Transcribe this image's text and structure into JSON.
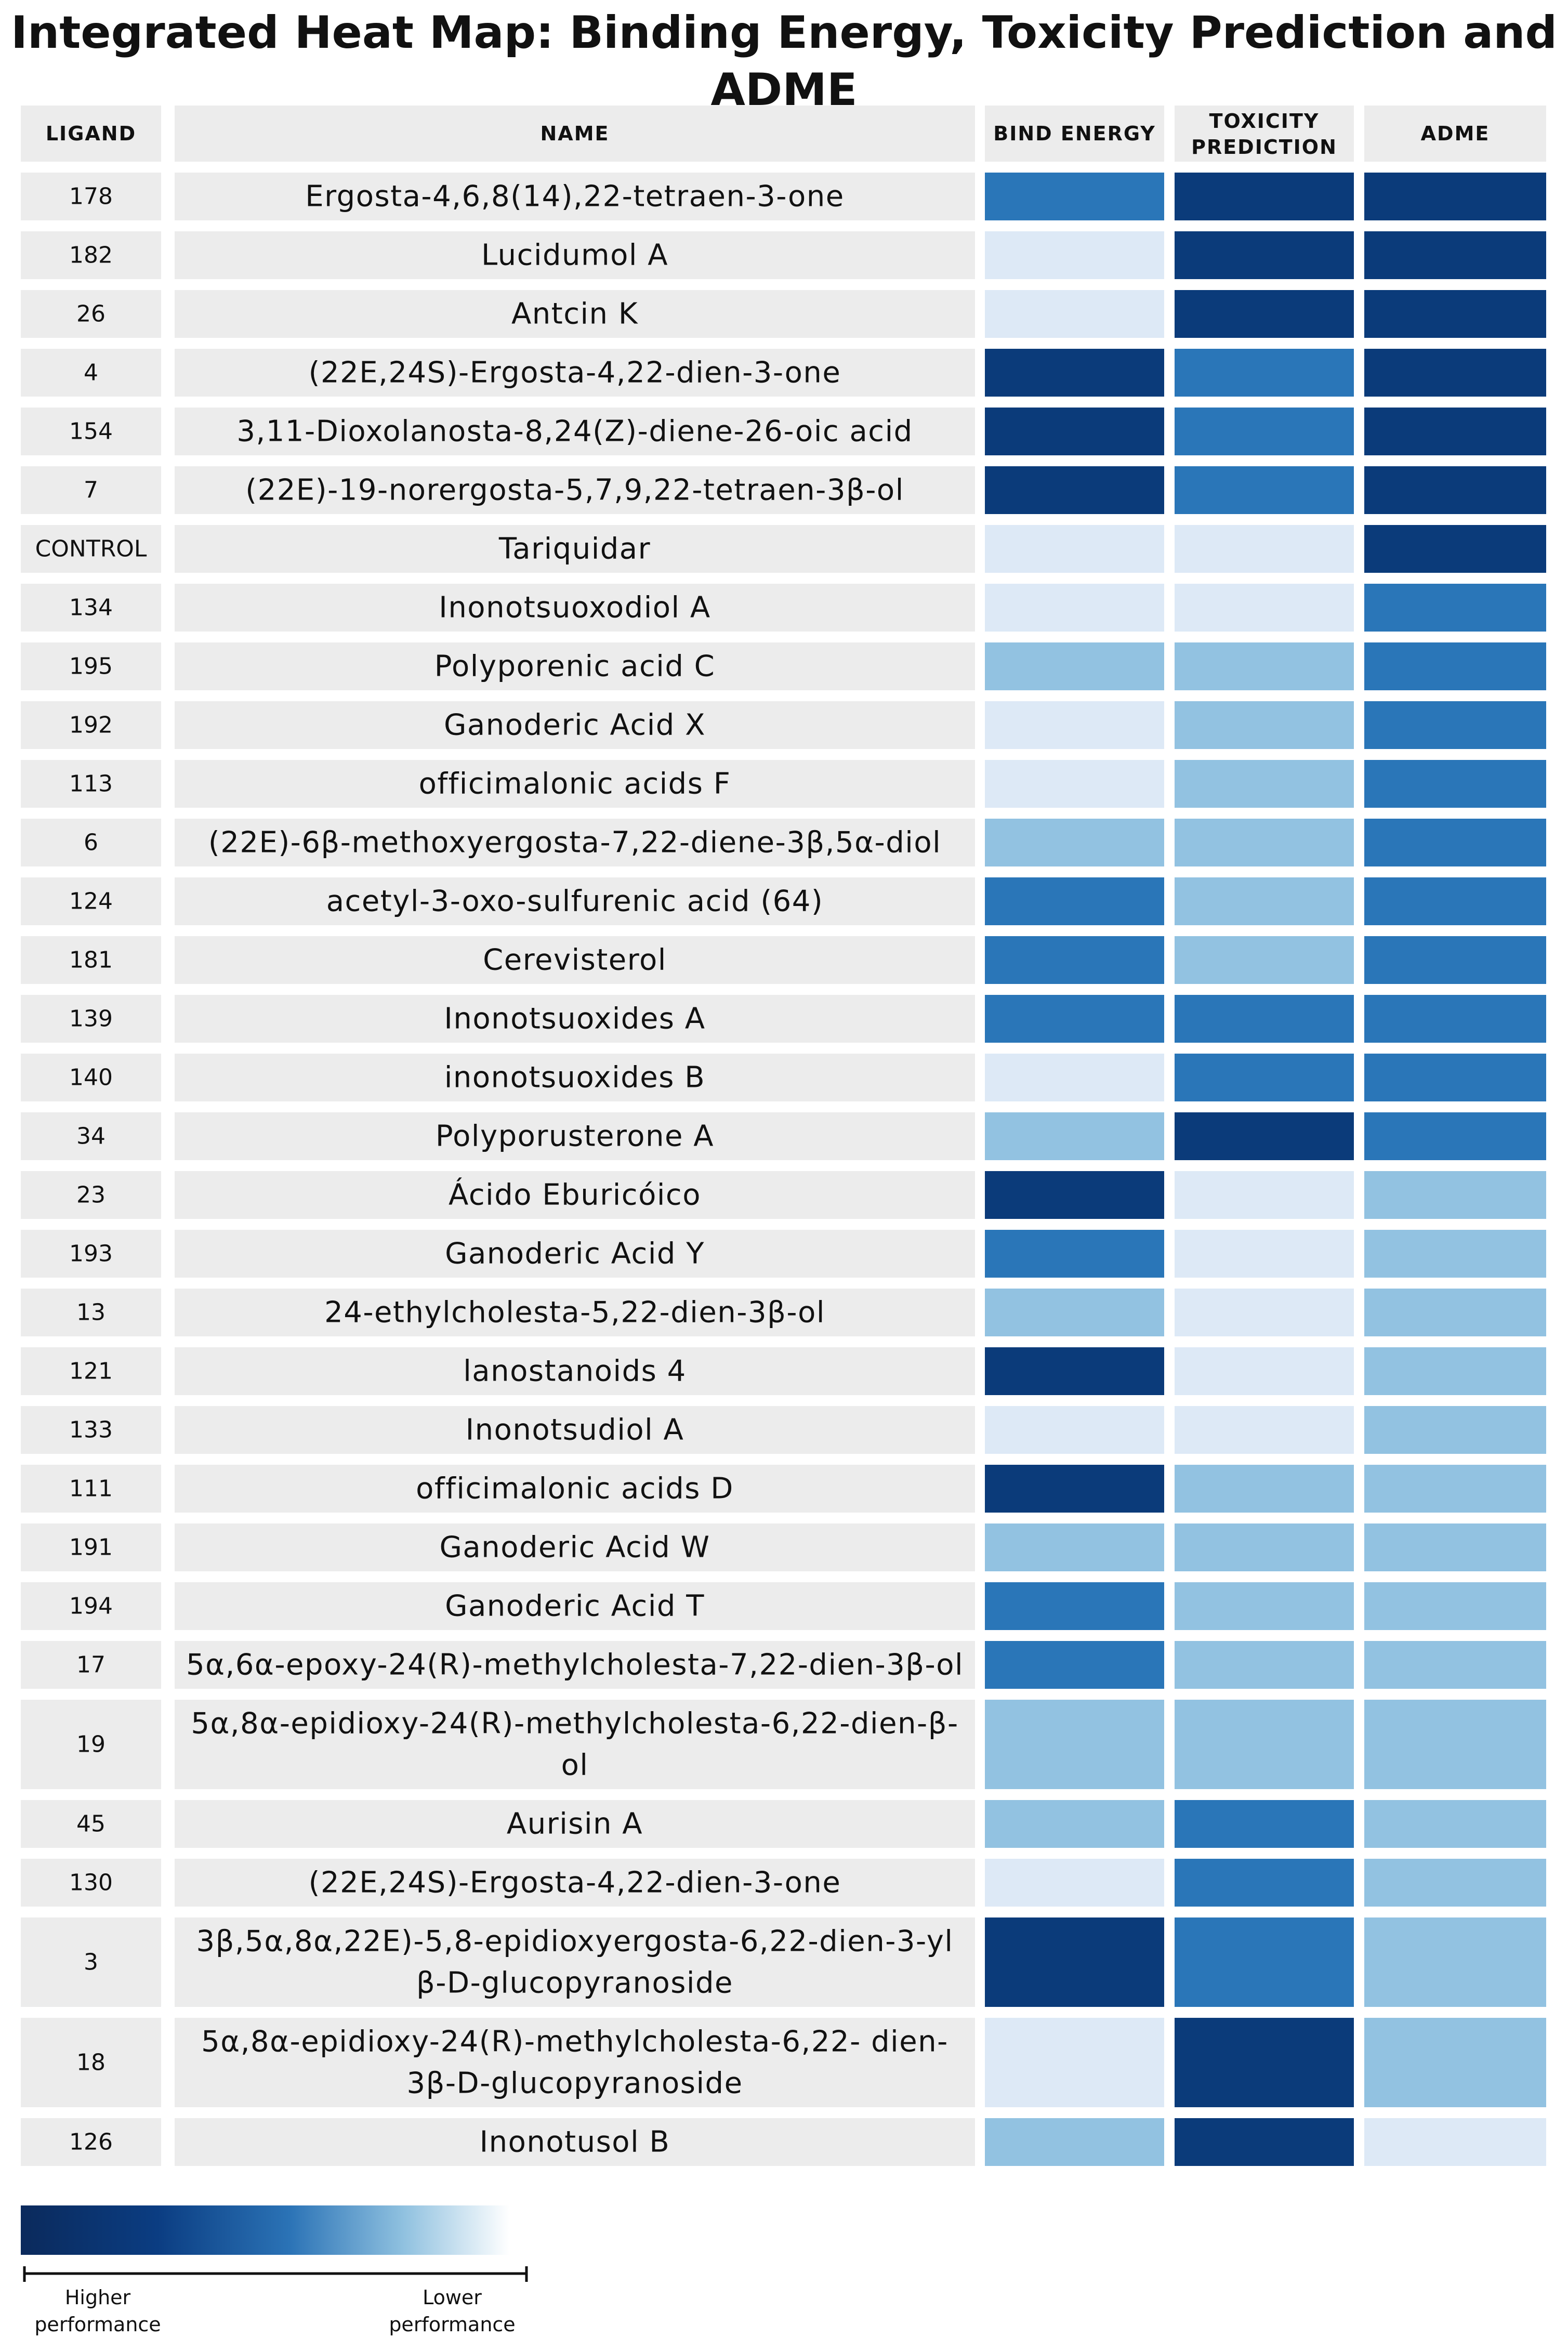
{
  "chart_data": {
    "type": "heatmap",
    "title": "Integrated Heat Map: Binding Energy, Toxicity Prediction and ADME",
    "columns": [
      "LIGAND",
      "NAME",
      "BIND ENERGY",
      "TOXICITY PREDICTION",
      "ADME"
    ],
    "metric_columns": [
      "BIND ENERGY",
      "TOXICITY PREDICTION",
      "ADME"
    ],
    "scale": "1 = lower performance (lightest) … 4 = higher performance (darkest)",
    "colors": {
      "1": "#dde9f6",
      "2": "#92c2e1",
      "3": "#2a76b8",
      "4": "#0b3b7a"
    },
    "rows": [
      {
        "ligand": "178",
        "name": "Ergosta-4,6,8(14),22-tetraen-3-one",
        "values": [
          3,
          4,
          4
        ]
      },
      {
        "ligand": "182",
        "name": "Lucidumol A",
        "values": [
          1,
          4,
          4
        ]
      },
      {
        "ligand": "26",
        "name": "Antcin K",
        "values": [
          1,
          4,
          4
        ]
      },
      {
        "ligand": "4",
        "name": "(22E,24S)-Ergosta-4,22-dien-3-one",
        "values": [
          4,
          3,
          4
        ]
      },
      {
        "ligand": "154",
        "name": "3,11-Dioxolanosta-8,24(Z)-diene-26-oic acid",
        "values": [
          4,
          3,
          4
        ]
      },
      {
        "ligand": "7",
        "name": "(22E)-19-norergosta-5,7,9,22-tetraen-3β-ol",
        "values": [
          4,
          3,
          4
        ]
      },
      {
        "ligand": "CONTROL",
        "name": "Tariquidar",
        "values": [
          1,
          1,
          4
        ]
      },
      {
        "ligand": "134",
        "name": "Inonotsuoxodiol A",
        "values": [
          1,
          1,
          3
        ]
      },
      {
        "ligand": "195",
        "name": "Polyporenic acid C",
        "values": [
          2,
          2,
          3
        ]
      },
      {
        "ligand": "192",
        "name": "Ganoderic Acid X",
        "values": [
          1,
          2,
          3
        ]
      },
      {
        "ligand": "113",
        "name": "officimalonic acids F",
        "values": [
          1,
          2,
          3
        ]
      },
      {
        "ligand": "6",
        "name": "(22E)-6β-methoxyergosta-7,22-diene-3β,5α-diol",
        "values": [
          2,
          2,
          3
        ]
      },
      {
        "ligand": "124",
        "name": "acetyl-3-oxo-sulfurenic acid (64)",
        "values": [
          3,
          2,
          3
        ]
      },
      {
        "ligand": "181",
        "name": "Cerevisterol",
        "values": [
          3,
          2,
          3
        ]
      },
      {
        "ligand": "139",
        "name": "Inonotsuoxides A",
        "values": [
          3,
          3,
          3
        ]
      },
      {
        "ligand": "140",
        "name": "inonotsuoxides B",
        "values": [
          1,
          3,
          3
        ]
      },
      {
        "ligand": "34",
        "name": "Polyporusterone A",
        "values": [
          2,
          4,
          3
        ]
      },
      {
        "ligand": "23",
        "name": "Ácido Eburicóico",
        "values": [
          4,
          1,
          2
        ]
      },
      {
        "ligand": "193",
        "name": "Ganoderic Acid Y",
        "values": [
          3,
          1,
          2
        ]
      },
      {
        "ligand": "13",
        "name": "24-ethylcholesta-5,22-dien-3β-ol",
        "values": [
          2,
          1,
          2
        ]
      },
      {
        "ligand": "121",
        "name": "lanostanoids 4",
        "values": [
          4,
          1,
          2
        ]
      },
      {
        "ligand": "133",
        "name": "Inonotsudiol A",
        "values": [
          1,
          1,
          2
        ]
      },
      {
        "ligand": "111",
        "name": "officimalonic acids D",
        "values": [
          4,
          2,
          2
        ]
      },
      {
        "ligand": "191",
        "name": "Ganoderic Acid W",
        "values": [
          2,
          2,
          2
        ]
      },
      {
        "ligand": "194",
        "name": "Ganoderic Acid T",
        "values": [
          3,
          2,
          2
        ]
      },
      {
        "ligand": "17",
        "name": "5α,6α-epoxy-24(R)-methylcholesta-7,22-dien-3β-ol",
        "values": [
          3,
          2,
          2
        ]
      },
      {
        "ligand": "19",
        "name": [
          "5α,8α-epidioxy-24(R)-methylcholesta-6,22-dien-β-",
          "ol"
        ],
        "values": [
          2,
          2,
          2
        ]
      },
      {
        "ligand": "45",
        "name": "Aurisin A",
        "values": [
          2,
          3,
          2
        ]
      },
      {
        "ligand": "130",
        "name": "(22E,24S)-Ergosta-4,22-dien-3-one",
        "values": [
          1,
          3,
          2
        ]
      },
      {
        "ligand": "3",
        "name": [
          "3β,5α,8α,22E)-5,8-epidioxyergosta-6,22-dien-3-yl",
          "β-D-glucopyranoside"
        ],
        "values": [
          4,
          3,
          2
        ]
      },
      {
        "ligand": "18",
        "name": [
          "5α,8α-epidioxy-24(R)-methylcholesta-6,22- dien-",
          "3β-D-glucopyranoside"
        ],
        "values": [
          1,
          4,
          2
        ]
      },
      {
        "ligand": "126",
        "name": "Inonotusol B",
        "values": [
          2,
          4,
          1
        ]
      }
    ],
    "legend": {
      "high_label": [
        "Higher",
        "performance"
      ],
      "low_label": [
        "Lower",
        "performance"
      ]
    }
  }
}
